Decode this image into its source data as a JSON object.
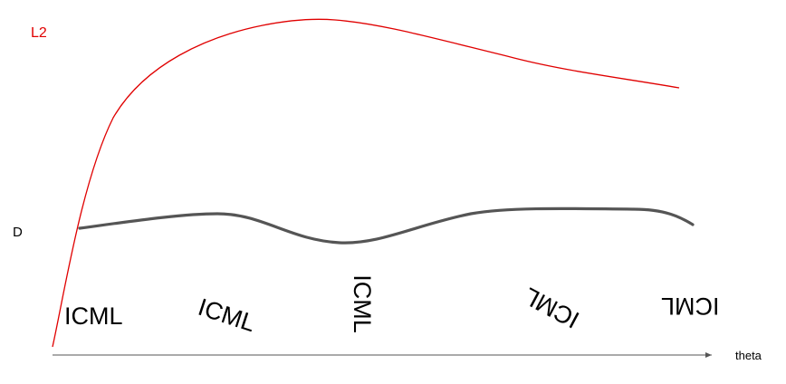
{
  "labels": {
    "l2": "L2",
    "d": "D",
    "theta": "theta"
  },
  "colors": {
    "l2_curve": "#e00000",
    "d_curve": "#555555",
    "axis": "#555555"
  },
  "glyphs": {
    "word_1": "ICML",
    "word_2": "ICML",
    "word_3": "ICML",
    "word_4": "ICML",
    "word_5": "ICML"
  }
}
